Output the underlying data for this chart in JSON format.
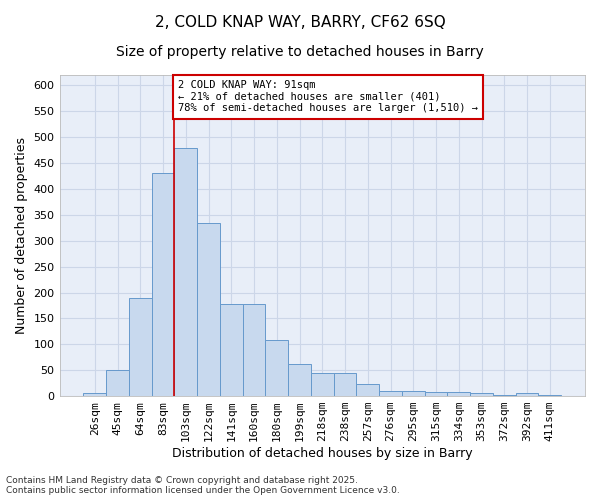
{
  "title1": "2, COLD KNAP WAY, BARRY, CF62 6SQ",
  "title2": "Size of property relative to detached houses in Barry",
  "xlabel": "Distribution of detached houses by size in Barry",
  "ylabel": "Number of detached properties",
  "categories": [
    "26sqm",
    "45sqm",
    "64sqm",
    "83sqm",
    "103sqm",
    "122sqm",
    "141sqm",
    "160sqm",
    "180sqm",
    "199sqm",
    "218sqm",
    "238sqm",
    "257sqm",
    "276sqm",
    "295sqm",
    "315sqm",
    "334sqm",
    "353sqm",
    "372sqm",
    "392sqm",
    "411sqm"
  ],
  "values": [
    5,
    50,
    190,
    430,
    480,
    335,
    178,
    178,
    108,
    62,
    45,
    45,
    23,
    10,
    10,
    8,
    7,
    5,
    3,
    5,
    3
  ],
  "bar_color": "#c8d9ee",
  "bar_edge_color": "#6699cc",
  "red_line_index": 4,
  "annotation_text": "2 COLD KNAP WAY: 91sqm\n← 21% of detached houses are smaller (401)\n78% of semi-detached houses are larger (1,510) →",
  "annotation_box_facecolor": "#ffffff",
  "annotation_box_edgecolor": "#cc0000",
  "footnote": "Contains HM Land Registry data © Crown copyright and database right 2025.\nContains public sector information licensed under the Open Government Licence v3.0.",
  "ylim": [
    0,
    620
  ],
  "yticks": [
    0,
    50,
    100,
    150,
    200,
    250,
    300,
    350,
    400,
    450,
    500,
    550,
    600
  ],
  "title1_fontsize": 11,
  "title2_fontsize": 10,
  "axis_label_fontsize": 9,
  "tick_fontsize": 8,
  "annotation_fontsize": 7.5,
  "footnote_fontsize": 6.5,
  "grid_color": "#ccd6e8",
  "bg_color": "#e8eef8",
  "fig_width": 6.0,
  "fig_height": 5.0,
  "dpi": 100
}
